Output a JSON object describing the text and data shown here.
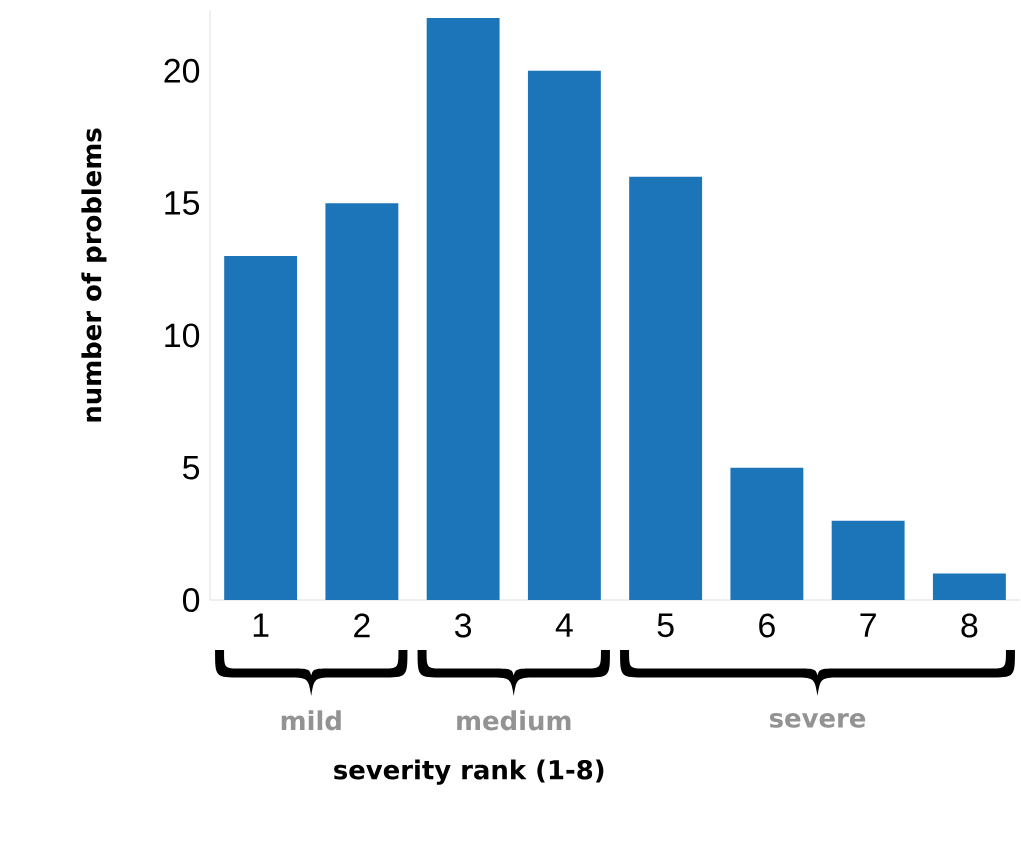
{
  "chart_data": {
    "type": "bar",
    "xlabel": "severity rank (1-8)",
    "ylabel": "number of problems",
    "categories": [
      "1",
      "2",
      "3",
      "4",
      "5",
      "6",
      "7",
      "8"
    ],
    "values": [
      13,
      15,
      22,
      20,
      16,
      5,
      3,
      1
    ],
    "color": "#1c75b8",
    "ylim": [
      0,
      22.3
    ],
    "yticks": [
      0,
      5,
      10,
      15,
      20
    ],
    "annotations": [
      "mild",
      "medium",
      "severe"
    ]
  }
}
